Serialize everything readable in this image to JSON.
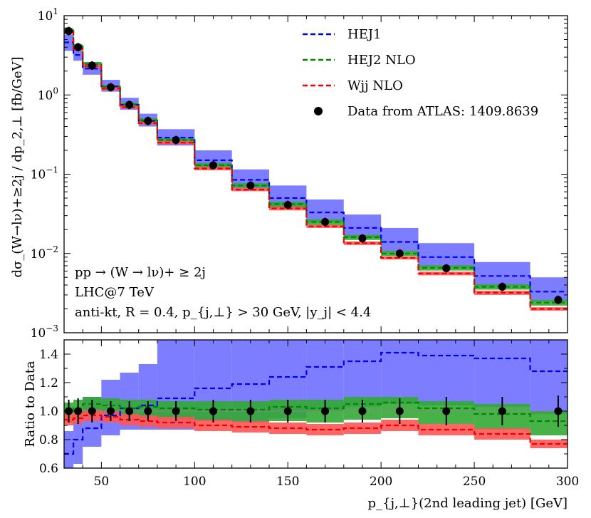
{
  "chart_data": {
    "type": "line",
    "title": "",
    "xlabel": "p_{j,⊥}(2nd leading jet) [GeV]",
    "xlim": [
      30,
      300
    ],
    "xticks": [
      50,
      100,
      150,
      200,
      250,
      300
    ],
    "bins": [
      30,
      35,
      40,
      50,
      60,
      70,
      80,
      100,
      120,
      140,
      160,
      180,
      200,
      220,
      250,
      280,
      300
    ],
    "top_panel": {
      "ylabel": "dσ_(W→lν)+≥2j / dp_2,⊥ [fb/GeV]",
      "yscale": "log",
      "ylim": [
        0.001,
        10
      ],
      "ytick_labels": [
        "10^1",
        "10^0",
        "10^-1",
        "10^-2",
        "10^-3"
      ],
      "series": [
        {
          "name": "HEJ1",
          "color": "#0000ee",
          "style": "dashed",
          "values": [
            4.6,
            3.2,
            2.15,
            1.28,
            0.75,
            0.47,
            0.29,
            0.15,
            0.085,
            0.05,
            0.033,
            0.021,
            0.014,
            0.009,
            0.0052,
            0.0033
          ],
          "band_low": [
            3.6,
            2.7,
            1.8,
            1.1,
            0.65,
            0.4,
            0.23,
            0.12,
            0.066,
            0.038,
            0.025,
            0.016,
            0.0105,
            0.0068,
            0.0039,
            0.0025
          ],
          "band_high": [
            5.8,
            4.0,
            2.6,
            1.55,
            0.92,
            0.58,
            0.37,
            0.2,
            0.115,
            0.072,
            0.048,
            0.031,
            0.021,
            0.0135,
            0.0078,
            0.005
          ],
          "band_color": "#6666ff"
        },
        {
          "name": "HEJ2 NLO",
          "color": "#008800",
          "style": "dashed",
          "values": [
            6.5,
            4.1,
            2.45,
            1.27,
            0.76,
            0.48,
            0.27,
            0.13,
            0.072,
            0.042,
            0.025,
            0.016,
            0.01,
            0.0066,
            0.0038,
            0.0024
          ],
          "band_low": [
            6.2,
            3.9,
            2.3,
            1.2,
            0.72,
            0.45,
            0.255,
            0.122,
            0.068,
            0.039,
            0.023,
            0.0148,
            0.0093,
            0.0061,
            0.0035,
            0.0022
          ],
          "band_high": [
            6.9,
            4.35,
            2.6,
            1.34,
            0.8,
            0.51,
            0.285,
            0.138,
            0.077,
            0.045,
            0.027,
            0.0172,
            0.0108,
            0.0071,
            0.0041,
            0.0026
          ],
          "band_color": "#33aa33"
        },
        {
          "name": "Wjj NLO",
          "color": "#ee0000",
          "style": "dashed",
          "values": [
            6.2,
            3.8,
            2.3,
            1.2,
            0.7,
            0.44,
            0.25,
            0.118,
            0.064,
            0.037,
            0.022,
            0.0135,
            0.0088,
            0.0056,
            0.0032,
            0.002
          ],
          "band_low": [
            5.9,
            3.6,
            2.2,
            1.15,
            0.67,
            0.42,
            0.238,
            0.112,
            0.061,
            0.035,
            0.021,
            0.0128,
            0.0084,
            0.0053,
            0.003,
            0.0019
          ],
          "band_high": [
            6.5,
            4.0,
            2.4,
            1.25,
            0.73,
            0.46,
            0.262,
            0.124,
            0.067,
            0.039,
            0.023,
            0.0142,
            0.0092,
            0.0059,
            0.0034,
            0.0021
          ],
          "band_color": "#ff5555"
        }
      ],
      "data_points": {
        "name": "Data from ATLAS: 1409.8639",
        "x": [
          32.5,
          37.5,
          45,
          55,
          65,
          75,
          90,
          110,
          130,
          150,
          170,
          190,
          210,
          235,
          265,
          295
        ],
        "y": [
          6.4,
          4.0,
          2.35,
          1.25,
          0.75,
          0.47,
          0.27,
          0.13,
          0.072,
          0.041,
          0.025,
          0.0155,
          0.01,
          0.0065,
          0.0038,
          0.0026
        ]
      },
      "annotations": [
        "pp → (W → lν)+ ≥ 2j",
        "LHC@7 TeV",
        "anti-kt, R = 0.4, p_{j,⊥} > 30 GeV, |y_j| < 4.4"
      ],
      "legend_position": "top-right"
    },
    "bottom_panel": {
      "ylabel": "Ratio to Data",
      "ylim": [
        0.6,
        1.5
      ],
      "yticks": [
        0.6,
        0.8,
        1.0,
        1.2,
        1.4
      ],
      "ytick_labels": [
        "0.6",
        "0.8",
        "1.0",
        "1.2",
        "1.4"
      ],
      "series": [
        {
          "name": "HEJ1",
          "values": [
            0.7,
            0.8,
            0.88,
            0.97,
            1.02,
            1.04,
            1.09,
            1.16,
            1.19,
            1.24,
            1.31,
            1.35,
            1.41,
            1.39,
            1.37,
            1.28
          ],
          "band_low": [
            0.6,
            0.63,
            0.75,
            0.83,
            0.87,
            0.87,
            0.87,
            0.93,
            0.92,
            0.95,
            1.0,
            1.03,
            1.05,
            1.04,
            1.03,
            0.98
          ],
          "band_high": [
            0.86,
            1.0,
            1.1,
            1.22,
            1.27,
            1.33,
            1.5,
            1.5,
            1.5,
            1.5,
            1.5,
            1.5,
            1.5,
            1.5,
            1.5,
            1.5
          ]
        },
        {
          "name": "HEJ2 NLO",
          "values": [
            1.0,
            1.02,
            1.05,
            1.04,
            1.02,
            1.03,
            1.02,
            1.01,
            1.01,
            1.03,
            1.02,
            1.05,
            1.06,
            1.02,
            0.98,
            0.93
          ],
          "band_low": [
            0.92,
            0.94,
            0.98,
            0.97,
            0.95,
            0.95,
            0.94,
            0.93,
            0.92,
            0.93,
            0.92,
            0.94,
            0.95,
            0.91,
            0.87,
            0.83
          ],
          "band_high": [
            1.06,
            1.08,
            1.1,
            1.09,
            1.08,
            1.08,
            1.07,
            1.07,
            1.07,
            1.08,
            1.08,
            1.1,
            1.1,
            1.07,
            1.05,
            1.0
          ]
        },
        {
          "name": "Wjj NLO",
          "values": [
            0.94,
            0.95,
            0.97,
            0.96,
            0.94,
            0.93,
            0.92,
            0.9,
            0.89,
            0.88,
            0.87,
            0.88,
            0.9,
            0.87,
            0.84,
            0.77
          ],
          "band_low": [
            0.9,
            0.91,
            0.93,
            0.92,
            0.9,
            0.89,
            0.88,
            0.86,
            0.85,
            0.84,
            0.83,
            0.84,
            0.86,
            0.83,
            0.8,
            0.74
          ],
          "band_high": [
            0.98,
            0.99,
            1.01,
            1.0,
            0.98,
            0.97,
            0.96,
            0.94,
            0.93,
            0.92,
            0.91,
            0.92,
            0.94,
            0.91,
            0.88,
            0.8
          ]
        }
      ],
      "data_points": {
        "x": [
          32.5,
          37.5,
          45,
          55,
          65,
          75,
          90,
          110,
          130,
          150,
          170,
          190,
          210,
          235,
          265,
          295
        ],
        "y": [
          1.0,
          1.0,
          1.0,
          1.0,
          1.0,
          1.0,
          1.0,
          1.0,
          1.0,
          1.0,
          1.0,
          1.0,
          1.0,
          1.0,
          1.0,
          1.0
        ],
        "err": [
          0.08,
          0.09,
          0.08,
          0.07,
          0.07,
          0.07,
          0.07,
          0.08,
          0.08,
          0.08,
          0.08,
          0.08,
          0.09,
          0.1,
          0.1,
          0.11
        ]
      }
    }
  }
}
